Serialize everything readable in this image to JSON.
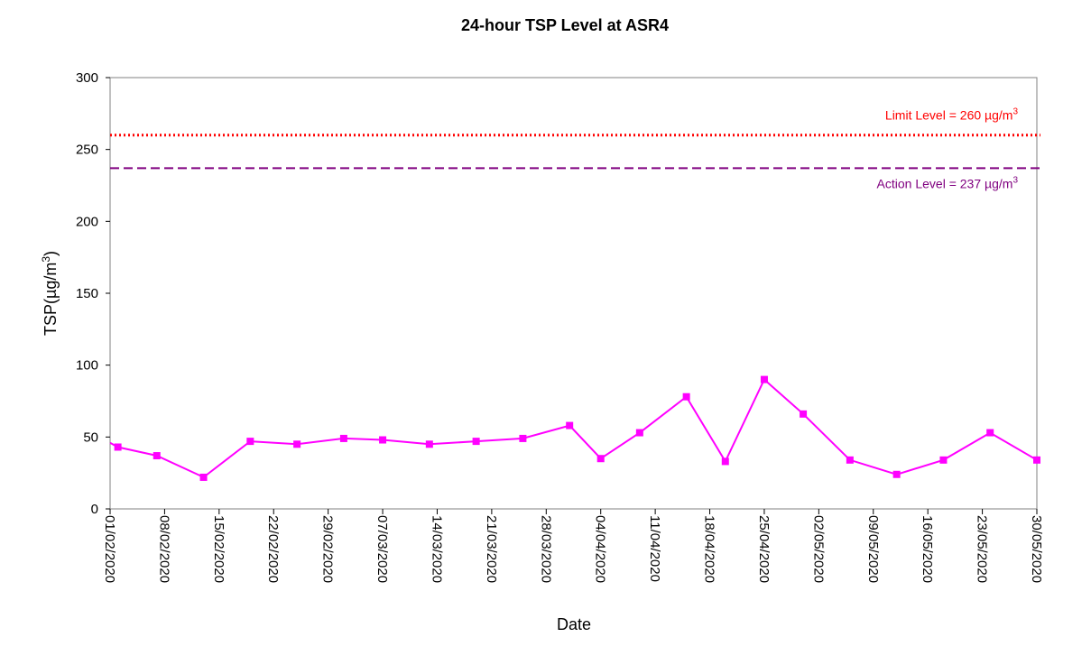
{
  "chart_data": {
    "type": "line",
    "title": "24-hour TSP Level at ASR4",
    "xlabel": "Date",
    "ylabel": "TSP(µg/m3)",
    "ylabel_parts": {
      "main": "TSP(µg/m",
      "sup": "3",
      "tail": ")"
    },
    "ylim": [
      0,
      300
    ],
    "yticks": [
      0,
      50,
      100,
      150,
      200,
      250,
      300
    ],
    "xlim": [
      "2020-02-01",
      "2020-05-30"
    ],
    "xtick_labels": [
      "01/02/2020",
      "08/02/2020",
      "15/02/2020",
      "22/02/2020",
      "29/02/2020",
      "07/03/2020",
      "14/03/2020",
      "21/03/2020",
      "28/03/2020",
      "04/04/2020",
      "11/04/2020",
      "18/04/2020",
      "25/04/2020",
      "02/05/2020",
      "09/05/2020",
      "16/05/2020",
      "23/05/2020",
      "30/05/2020"
    ],
    "grid": false,
    "series": [
      {
        "color": "#ff00ff",
        "marker": "square",
        "points": [
          {
            "x": "2020-02-02",
            "y": 43
          },
          {
            "x": "2020-02-07",
            "y": 37
          },
          {
            "x": "2020-02-13",
            "y": 22
          },
          {
            "x": "2020-02-19",
            "y": 47
          },
          {
            "x": "2020-02-25",
            "y": 45
          },
          {
            "x": "2020-03-02",
            "y": 49
          },
          {
            "x": "2020-03-07",
            "y": 48
          },
          {
            "x": "2020-03-13",
            "y": 45
          },
          {
            "x": "2020-03-19",
            "y": 47
          },
          {
            "x": "2020-03-25",
            "y": 49
          },
          {
            "x": "2020-03-31",
            "y": 58
          },
          {
            "x": "2020-04-04",
            "y": 35
          },
          {
            "x": "2020-04-09",
            "y": 53
          },
          {
            "x": "2020-04-15",
            "y": 78
          },
          {
            "x": "2020-04-20",
            "y": 33
          },
          {
            "x": "2020-04-25",
            "y": 90
          },
          {
            "x": "2020-04-30",
            "y": 66
          },
          {
            "x": "2020-05-06",
            "y": 34
          },
          {
            "x": "2020-05-12",
            "y": 24
          },
          {
            "x": "2020-05-18",
            "y": 34
          },
          {
            "x": "2020-05-24",
            "y": 53
          },
          {
            "x": "2020-05-30",
            "y": 34
          }
        ]
      }
    ],
    "reference_lines": [
      {
        "name": "limit",
        "value": 260,
        "color": "#ff0000",
        "style": "dotted",
        "label_main": "Limit Level = 260 µg/m",
        "label_sup": "3"
      },
      {
        "name": "action",
        "value": 237,
        "color": "#800080",
        "style": "dashed",
        "label_main": "Action Level = 237 µg/m",
        "label_sup": "3"
      }
    ]
  }
}
